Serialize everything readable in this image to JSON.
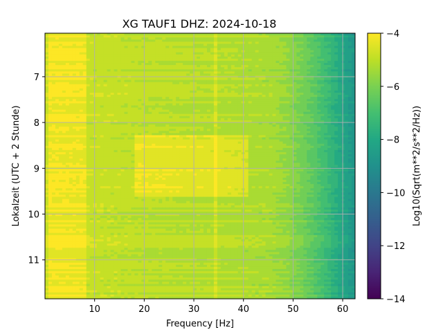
{
  "chart_data": {
    "type": "heatmap",
    "title": "XG TAUF1  DHZ: 2024-10-18",
    "xlabel": "Frequency [Hz]",
    "ylabel": "Lokalzeit (UTC + 2 Stunde)",
    "colorbar_label": "Log10(Sqrt(m**2/s**2/Hz))",
    "xlim": [
      0,
      62.5
    ],
    "ylim": [
      6.05,
      11.85
    ],
    "y_inverted": true,
    "x_ticks": [
      10,
      20,
      30,
      40,
      50,
      60
    ],
    "y_ticks": [
      7,
      8,
      9,
      10,
      11
    ],
    "colorbar_range": [
      -14,
      -4
    ],
    "colorbar_ticks": [
      -14,
      -12,
      -10,
      -8,
      -6,
      -4
    ],
    "colormap": "viridis",
    "grid": true,
    "grid_color": "#b0b0b0",
    "features": {
      "low_freq_band_hz": [
        1,
        8
      ],
      "high_freq_rolloff_start_hz": 45,
      "narrow_line_hz": 34.5,
      "bright_episode_time": [
        8.3,
        9.6
      ],
      "bright_episode_freq_hz": [
        18,
        41
      ]
    }
  }
}
